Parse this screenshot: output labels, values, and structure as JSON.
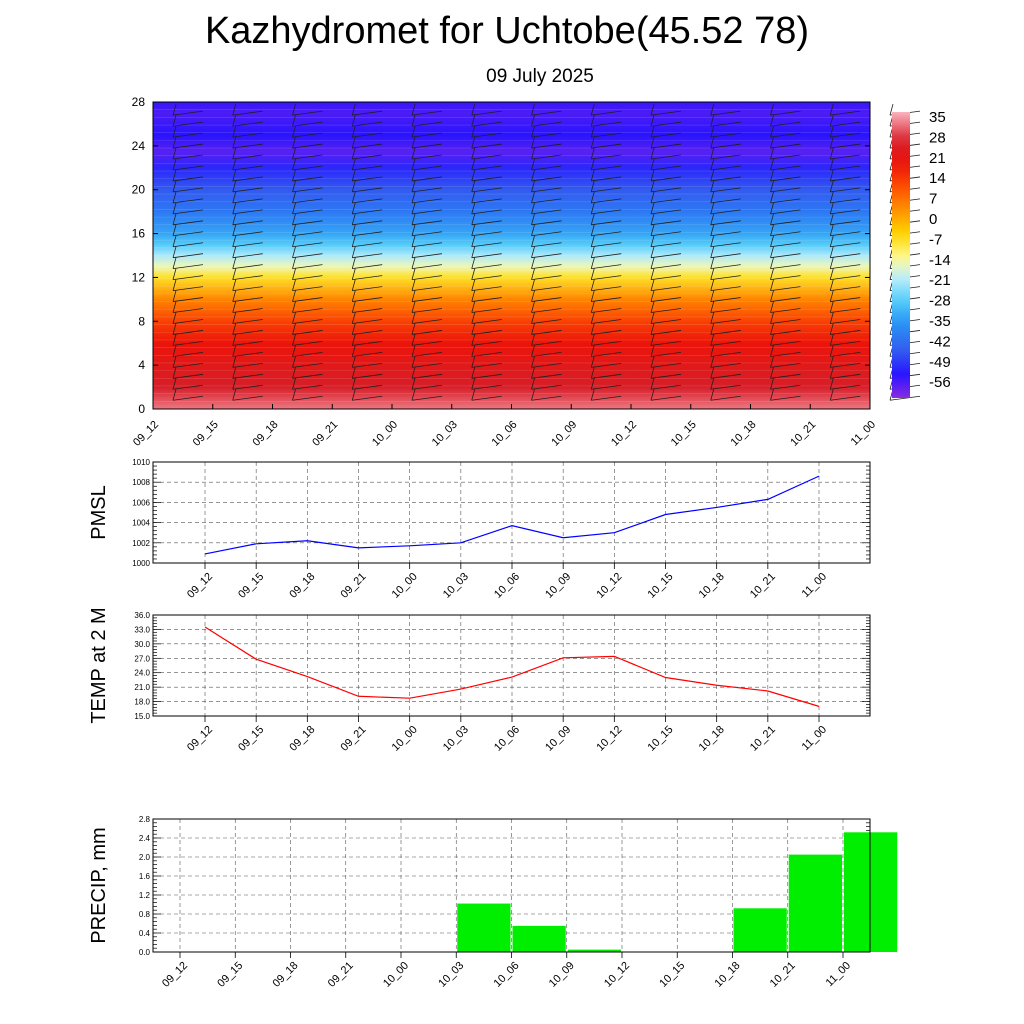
{
  "header": {
    "title": "Kazhydromet for Uchtobe(45.52 78)",
    "subtitle": "09 July 2025"
  },
  "colors": {
    "pmsl_line": "#0000ff",
    "temp_line": "#ff0000",
    "precip_bar": "#00ee00",
    "grid": "#555555"
  },
  "chart_data": [
    {
      "type": "heatmap",
      "title": "",
      "xlabel": "",
      "ylabel": "",
      "x": [
        "09_12",
        "09_15",
        "09_18",
        "09_21",
        "10_00",
        "10_03",
        "10_06",
        "10_09",
        "10_12",
        "10_15",
        "10_18",
        "10_21",
        "11_00"
      ],
      "ylim": [
        0,
        28
      ],
      "yticks": [
        "0",
        "4",
        "8",
        "12",
        "16",
        "20",
        "24",
        "28"
      ],
      "profile_levels": [
        0,
        2,
        4,
        6,
        8,
        10,
        12,
        13,
        14,
        15,
        16,
        18,
        20,
        22,
        23.5,
        25,
        27,
        28
      ],
      "profile_values": [
        34,
        28,
        24,
        20,
        14,
        6,
        -6,
        -14,
        -20,
        -27,
        -32,
        -39,
        -44,
        -50,
        -56,
        -52,
        -55,
        -53
      ],
      "colorbar": {
        "labels": [
          "35",
          "28",
          "21",
          "14",
          "7",
          "0",
          "-7",
          "-14",
          "-21",
          "-28",
          "-35",
          "-42",
          "-49",
          "-56"
        ],
        "range": [
          -60,
          38
        ]
      },
      "wind_barbs": "shown"
    },
    {
      "type": "line",
      "ylabel": "PMSL",
      "x": [
        "09_12",
        "09_15",
        "09_18",
        "09_21",
        "10_00",
        "10_03",
        "10_06",
        "10_09",
        "10_12",
        "10_15",
        "10_18",
        "10_21",
        "11_00"
      ],
      "series": [
        {
          "values": [
            1000.9,
            1001.9,
            1002.2,
            1001.5,
            1001.7,
            1002.0,
            1003.7,
            1002.5,
            1003.0,
            1004.8,
            1005.5,
            1006.3,
            1008.6
          ]
        }
      ],
      "ylim": [
        1000,
        1010
      ],
      "yticks": [
        "1000",
        "1002",
        "1004",
        "1006",
        "1008",
        "1010"
      ],
      "grid": true
    },
    {
      "type": "line",
      "ylabel": "TEMP at 2 M",
      "x": [
        "09_12",
        "09_15",
        "09_18",
        "09_21",
        "10_00",
        "10_03",
        "10_06",
        "10_09",
        "10_12",
        "10_15",
        "10_18",
        "10_21",
        "11_00"
      ],
      "series": [
        {
          "values": [
            33.5,
            26.8,
            23.2,
            19.1,
            18.7,
            20.6,
            23.1,
            27.1,
            27.4,
            23.0,
            21.4,
            20.2,
            17.0
          ]
        }
      ],
      "ylim": [
        15,
        36
      ],
      "yticks": [
        "15.0",
        "18.0",
        "21.0",
        "24.0",
        "27.0",
        "30.0",
        "33.0",
        "36.0"
      ],
      "grid": true
    },
    {
      "type": "bar",
      "ylabel": "PRECIP, mm",
      "categories": [
        "09_12",
        "09_15",
        "09_18",
        "09_21",
        "10_00",
        "10_03",
        "10_06",
        "10_09",
        "10_12",
        "10_15",
        "10_18",
        "10_21",
        "11_00"
      ],
      "values": [
        0,
        0,
        0,
        0,
        0,
        1.02,
        0.55,
        0.05,
        0,
        0,
        0.92,
        2.05,
        2.52
      ],
      "ylim": [
        0,
        2.8
      ],
      "yticks": [
        "0.0",
        "0.4",
        "0.8",
        "1.2",
        "1.6",
        "2.0",
        "2.4",
        "2.8"
      ],
      "grid": true
    }
  ]
}
